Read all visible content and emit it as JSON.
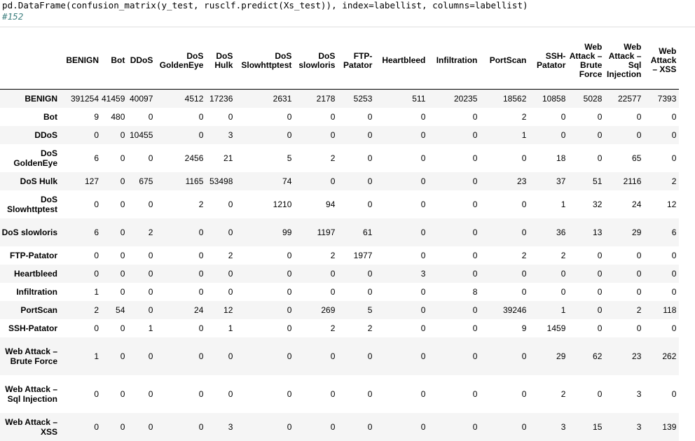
{
  "code": {
    "line": "pd.DataFrame(confusion_matrix(y_test, rusclf.predict(Xs_test)), index=labellist, columns=labellist)",
    "comment": "#152"
  },
  "table": {
    "columns": [
      "BENIGN",
      "Bot",
      "DDoS",
      "DoS GoldenEye",
      "DoS Hulk",
      "DoS Slowhttptest",
      "DoS slowloris",
      "FTP-Patator",
      "Heartbleed",
      "Infiltration",
      "PortScan",
      "SSH-Patator",
      "Web Attack – Brute Force",
      "Web Attack – Sql Injection",
      "Web Attack – XSS"
    ],
    "rows": [
      {
        "label": "BENIGN",
        "values": [
          "391254",
          "41459",
          "40097",
          "4512",
          "17236",
          "2631",
          "2178",
          "5253",
          "511",
          "20235",
          "18562",
          "10858",
          "5028",
          "22577",
          "7393"
        ]
      },
      {
        "label": "Bot",
        "values": [
          "9",
          "480",
          "0",
          "0",
          "0",
          "0",
          "0",
          "0",
          "0",
          "0",
          "2",
          "0",
          "0",
          "0",
          "0"
        ]
      },
      {
        "label": "DDoS",
        "values": [
          "0",
          "0",
          "10455",
          "0",
          "3",
          "0",
          "0",
          "0",
          "0",
          "0",
          "1",
          "0",
          "0",
          "0",
          "0"
        ]
      },
      {
        "label": "DoS GoldenEye",
        "values": [
          "6",
          "0",
          "0",
          "2456",
          "21",
          "5",
          "2",
          "0",
          "0",
          "0",
          "0",
          "18",
          "0",
          "65",
          "0"
        ]
      },
      {
        "label": "DoS Hulk",
        "values": [
          "127",
          "0",
          "675",
          "1165",
          "53498",
          "74",
          "0",
          "0",
          "0",
          "0",
          "23",
          "37",
          "51",
          "2116",
          "2"
        ]
      },
      {
        "label": "DoS Slowhttptest",
        "values": [
          "0",
          "0",
          "0",
          "2",
          "0",
          "1210",
          "94",
          "0",
          "0",
          "0",
          "0",
          "1",
          "32",
          "24",
          "12"
        ]
      },
      {
        "label": "DoS slowloris",
        "values": [
          "6",
          "0",
          "2",
          "0",
          "0",
          "99",
          "1197",
          "61",
          "0",
          "0",
          "0",
          "36",
          "13",
          "29",
          "6"
        ]
      },
      {
        "label": "FTP-Patator",
        "values": [
          "0",
          "0",
          "0",
          "0",
          "2",
          "0",
          "2",
          "1977",
          "0",
          "0",
          "2",
          "2",
          "0",
          "0",
          "0"
        ]
      },
      {
        "label": "Heartbleed",
        "values": [
          "0",
          "0",
          "0",
          "0",
          "0",
          "0",
          "0",
          "0",
          "3",
          "0",
          "0",
          "0",
          "0",
          "0",
          "0"
        ]
      },
      {
        "label": "Infiltration",
        "values": [
          "1",
          "0",
          "0",
          "0",
          "0",
          "0",
          "0",
          "0",
          "0",
          "8",
          "0",
          "0",
          "0",
          "0",
          "0"
        ]
      },
      {
        "label": "PortScan",
        "values": [
          "2",
          "54",
          "0",
          "24",
          "12",
          "0",
          "269",
          "5",
          "0",
          "0",
          "39246",
          "1",
          "0",
          "2",
          "118"
        ]
      },
      {
        "label": "SSH-Patator",
        "values": [
          "0",
          "0",
          "1",
          "0",
          "1",
          "0",
          "2",
          "2",
          "0",
          "0",
          "9",
          "1459",
          "0",
          "0",
          "0"
        ]
      },
      {
        "label": "Web Attack – Brute Force",
        "values": [
          "1",
          "0",
          "0",
          "0",
          "0",
          "0",
          "0",
          "0",
          "0",
          "0",
          "0",
          "29",
          "62",
          "23",
          "262"
        ]
      },
      {
        "label": "Web Attack – Sql Injection",
        "values": [
          "0",
          "0",
          "0",
          "0",
          "0",
          "0",
          "0",
          "0",
          "0",
          "0",
          "0",
          "2",
          "0",
          "3",
          "0"
        ]
      },
      {
        "label": "Web Attack – XSS",
        "values": [
          "0",
          "0",
          "0",
          "0",
          "3",
          "0",
          "0",
          "0",
          "0",
          "0",
          "0",
          "3",
          "15",
          "3",
          "139"
        ]
      }
    ]
  }
}
